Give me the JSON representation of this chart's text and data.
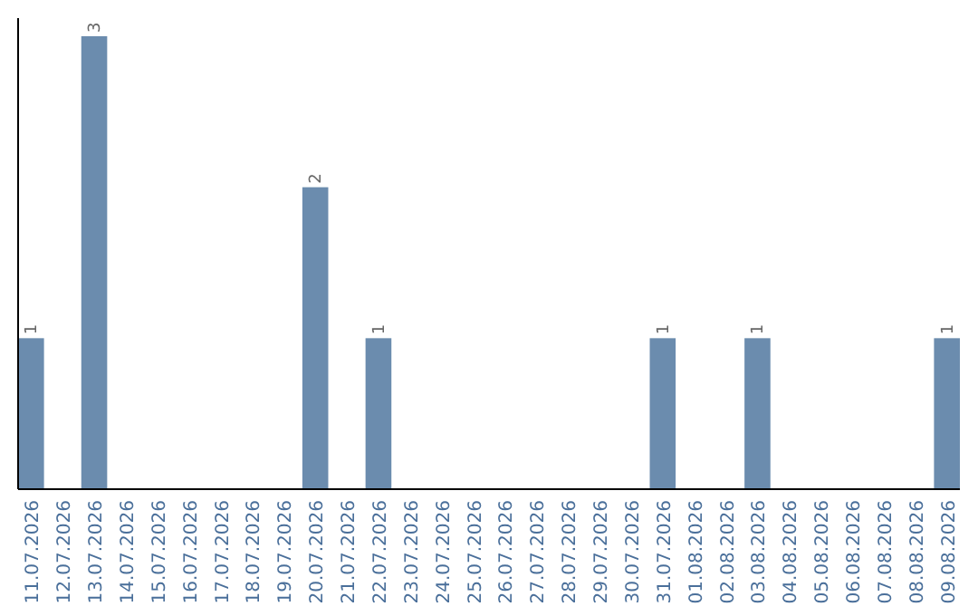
{
  "chart_data": {
    "type": "bar",
    "categories": [
      "11.07.2026",
      "12.07.2026",
      "13.07.2026",
      "14.07.2026",
      "15.07.2026",
      "16.07.2026",
      "17.07.2026",
      "18.07.2026",
      "19.07.2026",
      "20.07.2026",
      "21.07.2026",
      "22.07.2026",
      "23.07.2026",
      "24.07.2026",
      "25.07.2026",
      "26.07.2026",
      "27.07.2026",
      "28.07.2026",
      "29.07.2026",
      "30.07.2026",
      "31.07.2026",
      "01.08.2026",
      "02.08.2026",
      "03.08.2026",
      "04.08.2026",
      "05.08.2026",
      "06.08.2026",
      "07.08.2026",
      "08.08.2026",
      "09.08.2026"
    ],
    "values": [
      1,
      null,
      3,
      null,
      null,
      null,
      null,
      null,
      null,
      2,
      null,
      1,
      null,
      null,
      null,
      null,
      null,
      null,
      null,
      null,
      1,
      null,
      null,
      1,
      null,
      null,
      null,
      null,
      null,
      1
    ],
    "color": "#6b8cae",
    "data_labels": true
  }
}
